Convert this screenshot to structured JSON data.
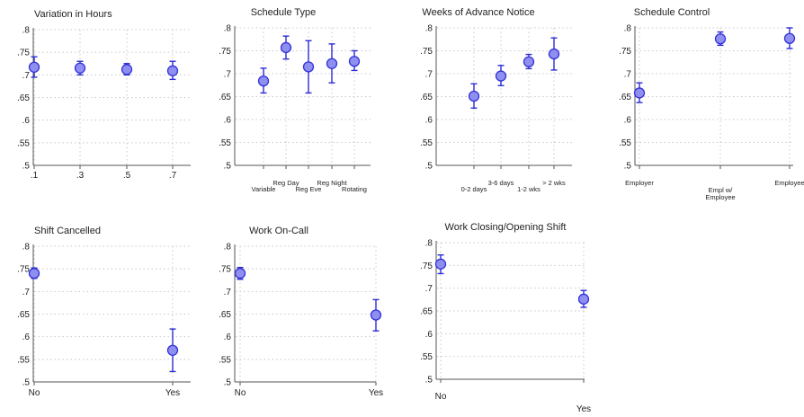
{
  "chart_data": [
    {
      "type": "scatter",
      "title": "Variation in Hours",
      "categories": [
        ".1",
        ".3",
        ".5",
        ".7"
      ],
      "values": [
        0.717,
        0.715,
        0.712,
        0.709
      ],
      "ci_low": [
        0.695,
        0.7,
        0.7,
        0.69
      ],
      "ci_high": [
        0.74,
        0.73,
        0.725,
        0.73
      ],
      "ylim": [
        0.5,
        0.8
      ],
      "yticks": [
        ".5",
        ".55",
        ".6",
        ".65",
        ".7",
        ".75",
        ".8"
      ],
      "grid": true
    },
    {
      "type": "scatter",
      "title": "Schedule Type",
      "categories": [
        "Variable",
        "Reg Day",
        "Reg Eve",
        "Reg Night",
        "Rotating"
      ],
      "values": [
        0.684,
        0.757,
        0.715,
        0.722,
        0.727
      ],
      "ci_low": [
        0.658,
        0.732,
        0.658,
        0.68,
        0.707
      ],
      "ci_high": [
        0.712,
        0.782,
        0.772,
        0.765,
        0.75
      ],
      "ylim": [
        0.5,
        0.8
      ],
      "yticks": [
        ".5",
        ".55",
        ".6",
        ".65",
        ".7",
        ".75",
        ".8"
      ],
      "grid": true
    },
    {
      "type": "scatter",
      "title": "Weeks of Advance Notice",
      "categories": [
        "0-2 days",
        "3-6 days",
        "1-2 wks",
        "> 2 wks"
      ],
      "values": [
        0.651,
        0.695,
        0.726,
        0.743
      ],
      "ci_low": [
        0.625,
        0.674,
        0.711,
        0.708
      ],
      "ci_high": [
        0.678,
        0.718,
        0.742,
        0.778
      ],
      "ylim": [
        0.5,
        0.8
      ],
      "yticks": [
        ".5",
        ".55",
        ".6",
        ".65",
        ".7",
        ".75",
        ".8"
      ],
      "grid": true
    },
    {
      "type": "scatter",
      "title": "Schedule Control",
      "categories": [
        "Employer",
        "Empl w/ Employee",
        "Employee"
      ],
      "values": [
        0.658,
        0.776,
        0.777
      ],
      "ci_low": [
        0.637,
        0.762,
        0.755
      ],
      "ci_high": [
        0.68,
        0.791,
        0.8
      ],
      "ylim": [
        0.5,
        0.8
      ],
      "yticks": [
        ".5",
        ".55",
        ".6",
        ".65",
        ".7",
        ".75",
        ".8"
      ],
      "grid": true
    },
    {
      "type": "scatter",
      "title": "Shift Cancelled",
      "categories": [
        "No",
        "Yes"
      ],
      "values": [
        0.74,
        0.57
      ],
      "ci_low": [
        0.729,
        0.523
      ],
      "ci_high": [
        0.752,
        0.617
      ],
      "ylim": [
        0.5,
        0.8
      ],
      "yticks": [
        ".5",
        ".55",
        ".6",
        ".65",
        ".7",
        ".75",
        ".8"
      ],
      "grid": true
    },
    {
      "type": "scatter",
      "title": "Work On-Call",
      "categories": [
        "No",
        "Yes"
      ],
      "values": [
        0.74,
        0.648
      ],
      "ci_low": [
        0.727,
        0.613
      ],
      "ci_high": [
        0.753,
        0.682
      ],
      "ylim": [
        0.5,
        0.8
      ],
      "yticks": [
        ".5",
        ".55",
        ".6",
        ".65",
        ".7",
        ".75",
        ".8"
      ],
      "grid": true
    },
    {
      "type": "scatter",
      "title": "Work Closing/Opening Shift",
      "categories": [
        "No",
        "Yes"
      ],
      "values": [
        0.753,
        0.676
      ],
      "ci_low": [
        0.732,
        0.658
      ],
      "ci_high": [
        0.773,
        0.695
      ],
      "ylim": [
        0.5,
        0.8
      ],
      "yticks": [
        ".5",
        ".55",
        ".6",
        ".65",
        ".7",
        ".75",
        ".8"
      ],
      "grid": true
    }
  ]
}
